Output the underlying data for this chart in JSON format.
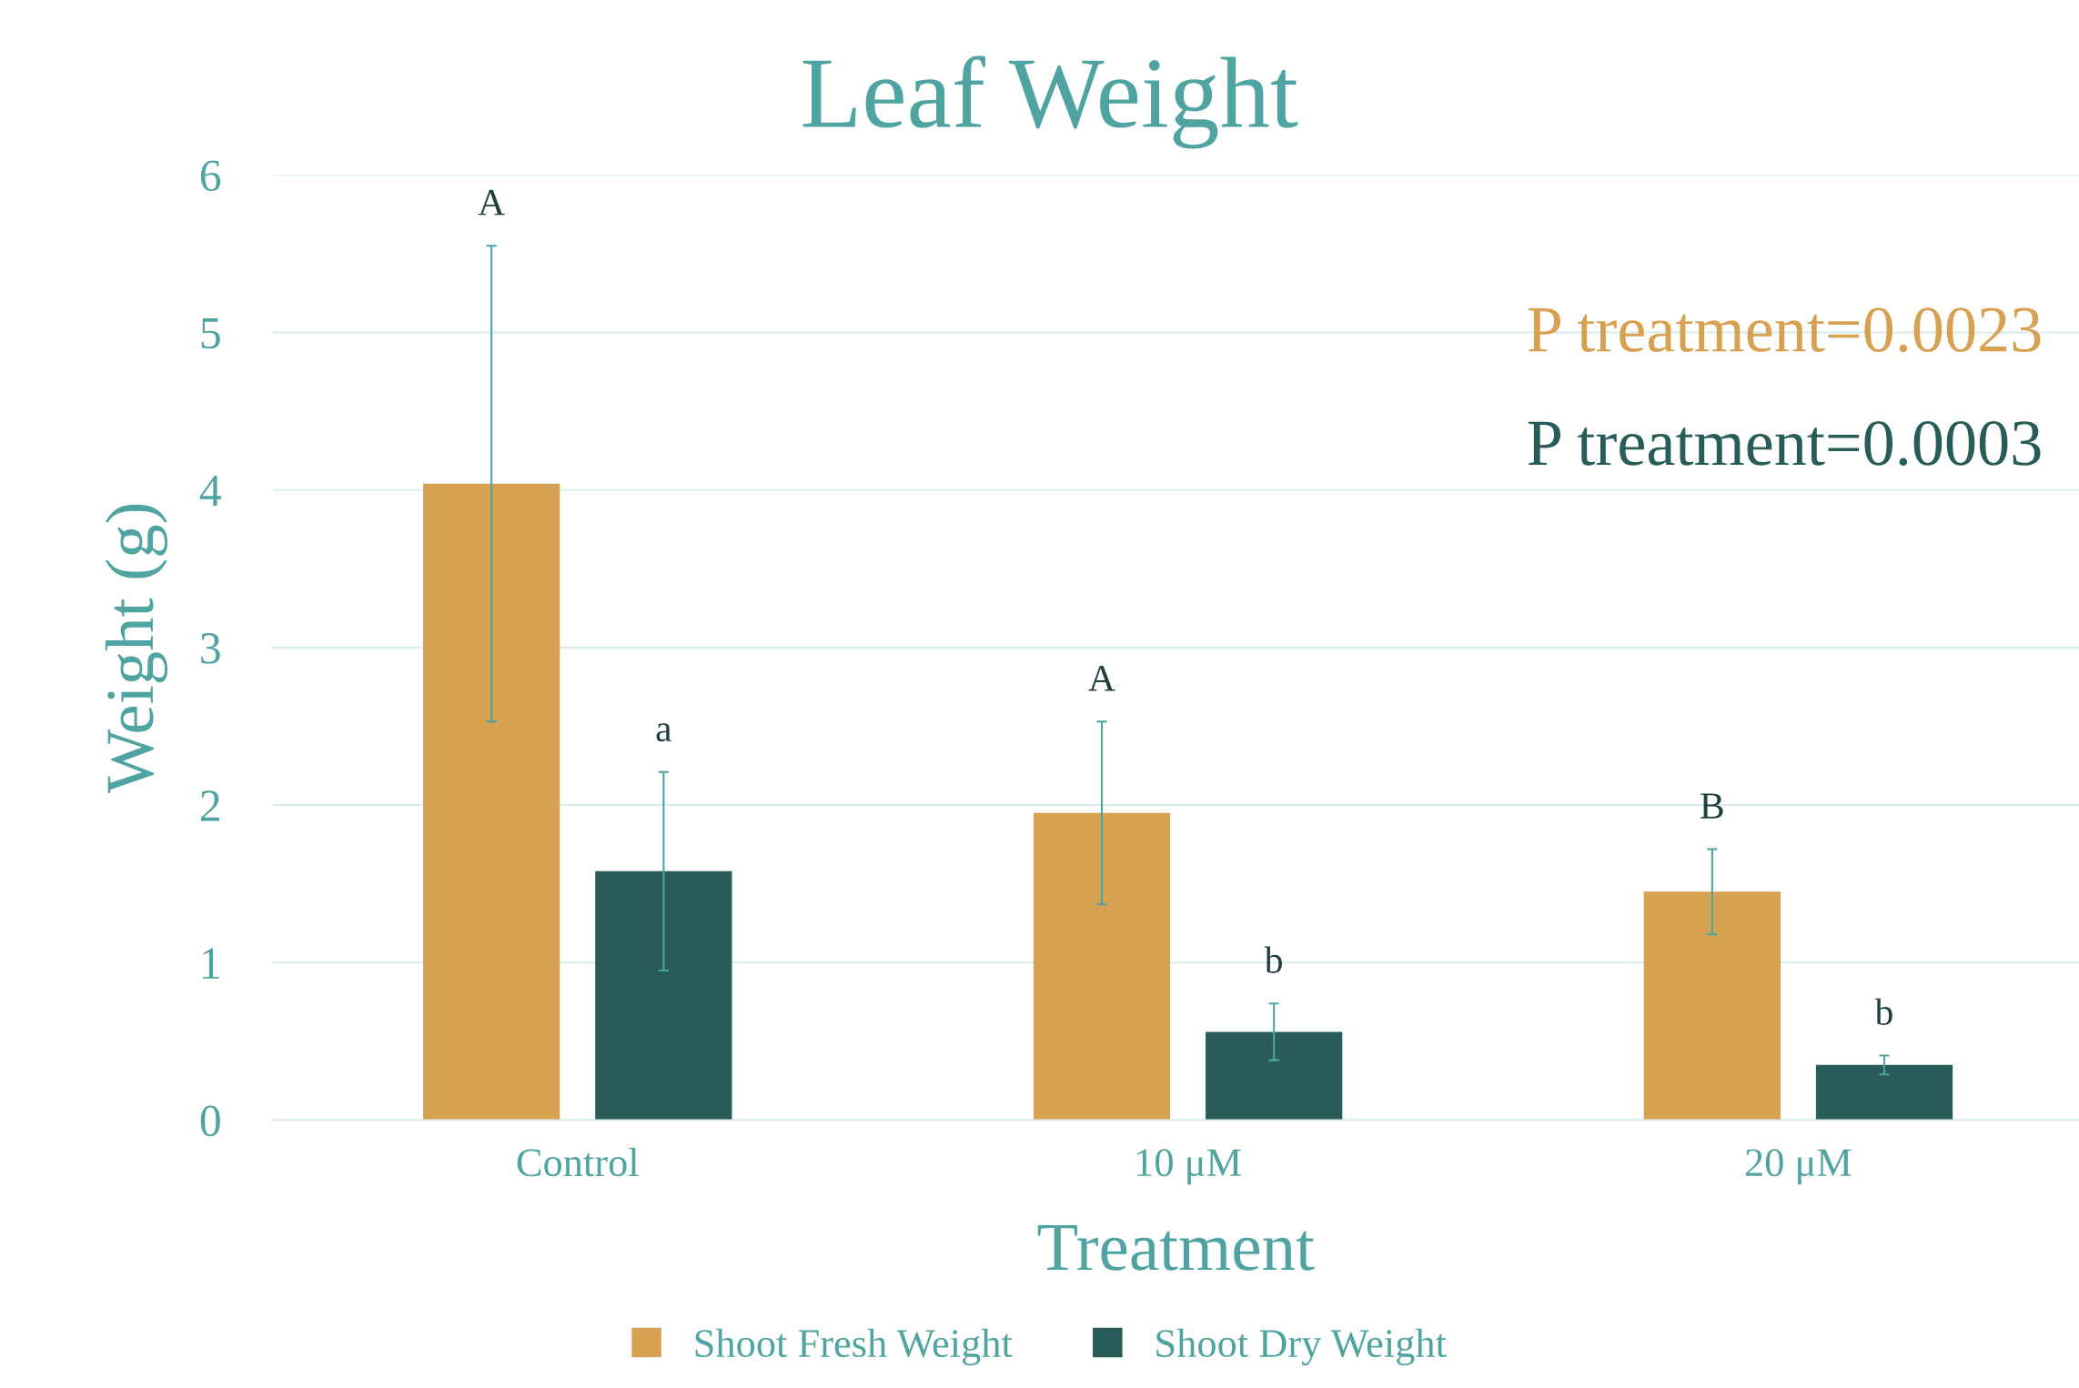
{
  "chart_data": {
    "type": "bar",
    "title": "Leaf Weight",
    "xlabel": "Treatment",
    "ylabel": "Weight (g)",
    "categories": [
      "Control",
      "10 μM",
      "20 μM"
    ],
    "series": [
      {
        "name": "Shoot Fresh Weight",
        "color": "#d6a151",
        "values": [
          4.04,
          1.95,
          1.45
        ],
        "errors": [
          1.51,
          0.58,
          0.27
        ]
      },
      {
        "name": "Shoot Dry Weight",
        "color": "#285c58",
        "values": [
          1.58,
          0.56,
          0.35
        ],
        "errors": [
          0.63,
          0.18,
          0.06
        ]
      }
    ],
    "annotations": [
      "P treatment=0.0023",
      "P treatment=0.0003",
      "A",
      "A",
      "B",
      "a",
      "b",
      "b"
    ],
    "ylim": [
      0,
      6
    ],
    "yticks": [
      0,
      1,
      2,
      3,
      4,
      5,
      6
    ],
    "grid": "y",
    "legend": "bottom"
  }
}
